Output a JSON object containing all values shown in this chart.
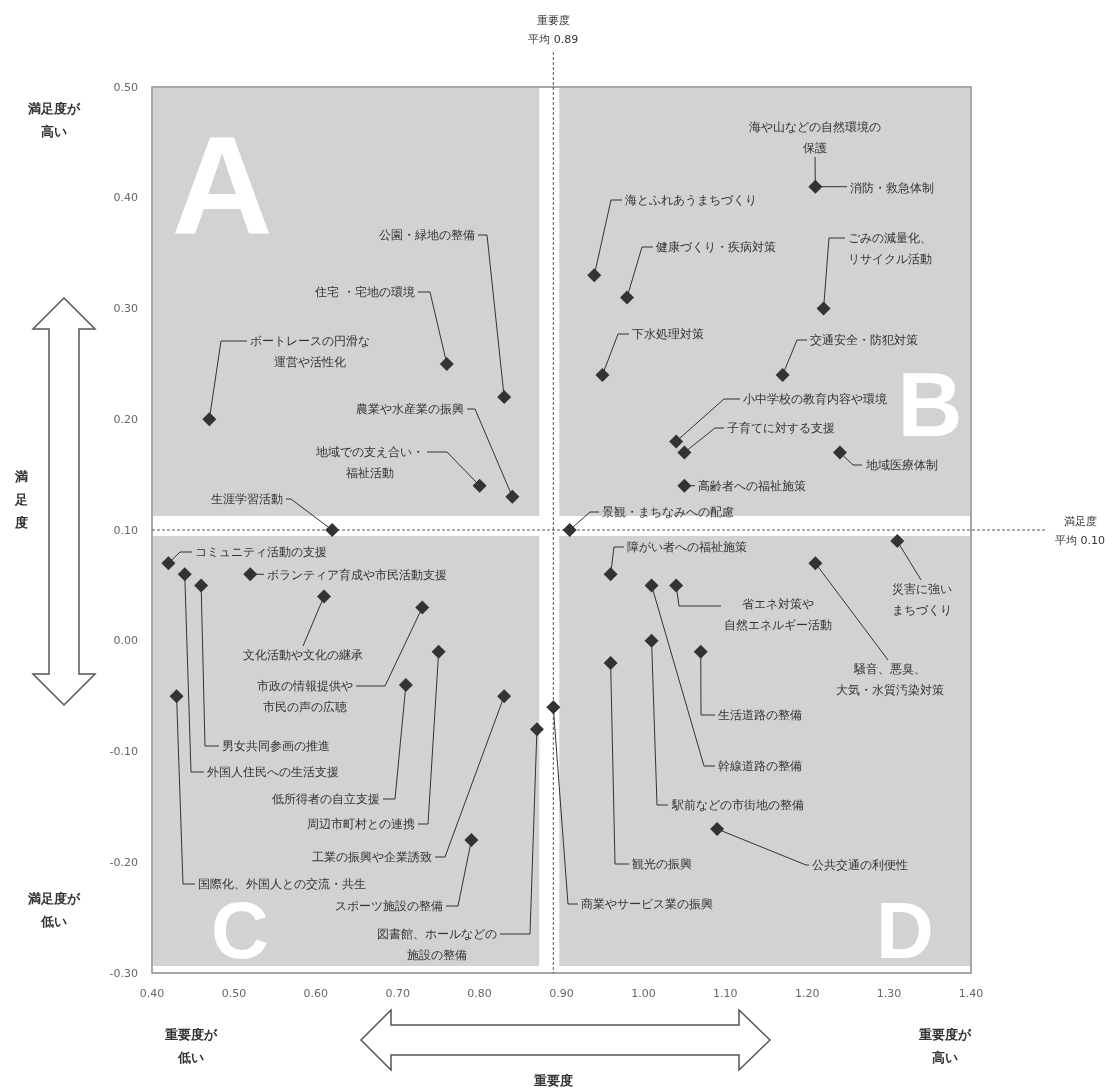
{
  "chart_data": {
    "type": "scatter",
    "color": "#333333",
    "marker": "diamond",
    "xlim": [
      0.4,
      1.4
    ],
    "ylim": [
      -0.3,
      0.5
    ],
    "xticks": [
      {
        "value": 0.4,
        "label": "0.40"
      },
      {
        "value": 0.5,
        "label": "0.50"
      },
      {
        "value": 0.6,
        "label": "0.60"
      },
      {
        "value": 0.7,
        "label": "0.70"
      },
      {
        "value": 0.8,
        "label": "0.80"
      },
      {
        "value": 0.9,
        "label": "0.90"
      },
      {
        "value": 1.0,
        "label": "1.00"
      },
      {
        "value": 1.1,
        "label": "1.10"
      },
      {
        "value": 1.2,
        "label": "1.20"
      },
      {
        "value": 1.3,
        "label": "1.30"
      },
      {
        "value": 1.4,
        "label": "1.40"
      }
    ],
    "yticks": [
      {
        "value": 0.5,
        "label": "0.50"
      },
      {
        "value": 0.4,
        "label": "0.40"
      },
      {
        "value": 0.3,
        "label": "0.30"
      },
      {
        "value": 0.2,
        "label": "0.20"
      },
      {
        "value": 0.1,
        "label": "0.10"
      },
      {
        "value": 0.0,
        "label": "0.00"
      },
      {
        "value": -0.1,
        "label": "-0.10"
      },
      {
        "value": -0.2,
        "label": "-0.20"
      },
      {
        "value": -0.3,
        "label": "-0.30"
      }
    ],
    "x": [
      0.47,
      0.76,
      0.83,
      0.84,
      0.8,
      0.62,
      1.21,
      0.94,
      0.98,
      1.22,
      0.95,
      1.17,
      1.04,
      1.05,
      1.24,
      1.05,
      0.91,
      0.96,
      1.31,
      1.21,
      1.01,
      1.04,
      1.01,
      1.07,
      0.96,
      0.89,
      1.09,
      0.42,
      0.44,
      0.46,
      0.52,
      0.61,
      0.73,
      0.75,
      0.71,
      0.43,
      0.83,
      0.87,
      0.79
    ],
    "values": [
      0.2,
      0.25,
      0.22,
      0.13,
      0.14,
      0.1,
      0.41,
      0.33,
      0.31,
      0.3,
      0.24,
      0.24,
      0.18,
      0.17,
      0.17,
      0.14,
      0.1,
      0.06,
      0.09,
      0.07,
      0.05,
      0.05,
      0.0,
      -0.01,
      -0.02,
      -0.06,
      -0.17,
      0.07,
      0.06,
      0.05,
      0.06,
      0.04,
      0.03,
      -0.01,
      -0.04,
      -0.05,
      -0.05,
      -0.08,
      -0.18
    ],
    "ref_lines": [
      {
        "axis": "x",
        "value": 0.89,
        "label": "重要度平均 0.89",
        "line_style": "dashed"
      },
      {
        "axis": "y",
        "value": 0.1,
        "label": "満足度平均 0.10",
        "line_style": "dashed"
      }
    ],
    "annotations": [
      "A",
      "B",
      "C",
      "D",
      "満足度が高い",
      "満足度が低い",
      "重要度が低い",
      "重要度が高い",
      "満足度",
      "重要度",
      {
        "text": "ボートレースの円滑な運営や活性化",
        "x": 0.47,
        "y": 0.2
      },
      {
        "text": "住宅 ・宅地の環境",
        "x": 0.76,
        "y": 0.25
      },
      {
        "text": "公園・緑地の整備",
        "x": 0.83,
        "y": 0.22
      },
      {
        "text": "農業や水産業の振興",
        "x": 0.84,
        "y": 0.13
      },
      {
        "text": "地域での支え合い・福祉活動",
        "x": 0.8,
        "y": 0.14
      },
      {
        "text": "生涯学習活動",
        "x": 0.62,
        "y": 0.1
      },
      {
        "text": "海や山などの自然環境の保護",
        "x": 1.21,
        "y": 0.41
      },
      {
        "text": "消防・救急体制",
        "x": 1.21,
        "y": 0.41
      },
      {
        "text": "海とふれあうまちづくり",
        "x": 0.94,
        "y": 0.33
      },
      {
        "text": "健康づくり・疾病対策",
        "x": 0.98,
        "y": 0.31
      },
      {
        "text": "ごみの減量化、リサイクル活動",
        "x": 1.22,
        "y": 0.3
      },
      {
        "text": "下水処理対策",
        "x": 0.95,
        "y": 0.24
      },
      {
        "text": "交通安全・防犯対策",
        "x": 1.17,
        "y": 0.24
      },
      {
        "text": "小中学校の教育内容や環境",
        "x": 1.04,
        "y": 0.18
      },
      {
        "text": "子育てに対する支援",
        "x": 1.05,
        "y": 0.17
      },
      {
        "text": "地域医療体制",
        "x": 1.24,
        "y": 0.17
      },
      {
        "text": "高齢者への福祉施策",
        "x": 1.05,
        "y": 0.14
      },
      {
        "text": "景観・まちなみへの配慮",
        "x": 0.91,
        "y": 0.1
      },
      {
        "text": "障がい者への福祉施策",
        "x": 0.96,
        "y": 0.06
      },
      {
        "text": "災害に強いまちづくり",
        "x": 1.31,
        "y": 0.09
      },
      {
        "text": "騒音、悪臭、大気・水質汚染対策",
        "x": 1.21,
        "y": 0.07
      },
      {
        "text": "幹線道路の整備",
        "x": 1.01,
        "y": 0.05
      },
      {
        "text": "省エネ対策や自然エネルギー活動",
        "x": 1.04,
        "y": 0.05
      },
      {
        "text": "駅前などの市街地の整備",
        "x": 1.01,
        "y": 0.0
      },
      {
        "text": "生活道路の整備",
        "x": 1.07,
        "y": -0.01
      },
      {
        "text": "観光の振興",
        "x": 0.96,
        "y": -0.02
      },
      {
        "text": "商業やサービス業の振興",
        "x": 0.89,
        "y": -0.06
      },
      {
        "text": "公共交通の利便性",
        "x": 1.09,
        "y": -0.17
      },
      {
        "text": "コミュニティ活動の支援",
        "x": 0.42,
        "y": 0.07
      },
      {
        "text": "外国人住民への生活支援",
        "x": 0.44,
        "y": 0.06
      },
      {
        "text": "男女共同参画の推進",
        "x": 0.46,
        "y": 0.05
      },
      {
        "text": "ボランティア育成や市民活動支援",
        "x": 0.52,
        "y": 0.06
      },
      {
        "text": "文化活動や文化の継承",
        "x": 0.61,
        "y": 0.04
      },
      {
        "text": "市政の情報提供や市民の声の広聴",
        "x": 0.73,
        "y": 0.03
      },
      {
        "text": "周辺市町村との連携",
        "x": 0.75,
        "y": -0.01
      },
      {
        "text": "低所得者の自立支援",
        "x": 0.71,
        "y": -0.04
      },
      {
        "text": "国際化、外国人との交流・共生",
        "x": 0.43,
        "y": -0.05
      },
      {
        "text": "工業の振興や企業誘致",
        "x": 0.83,
        "y": -0.05
      },
      {
        "text": "図書館、ホールなどの施設の整備",
        "x": 0.87,
        "y": -0.08
      },
      {
        "text": "スポーツ施設の整備",
        "x": 0.79,
        "y": -0.18
      }
    ]
  }
}
